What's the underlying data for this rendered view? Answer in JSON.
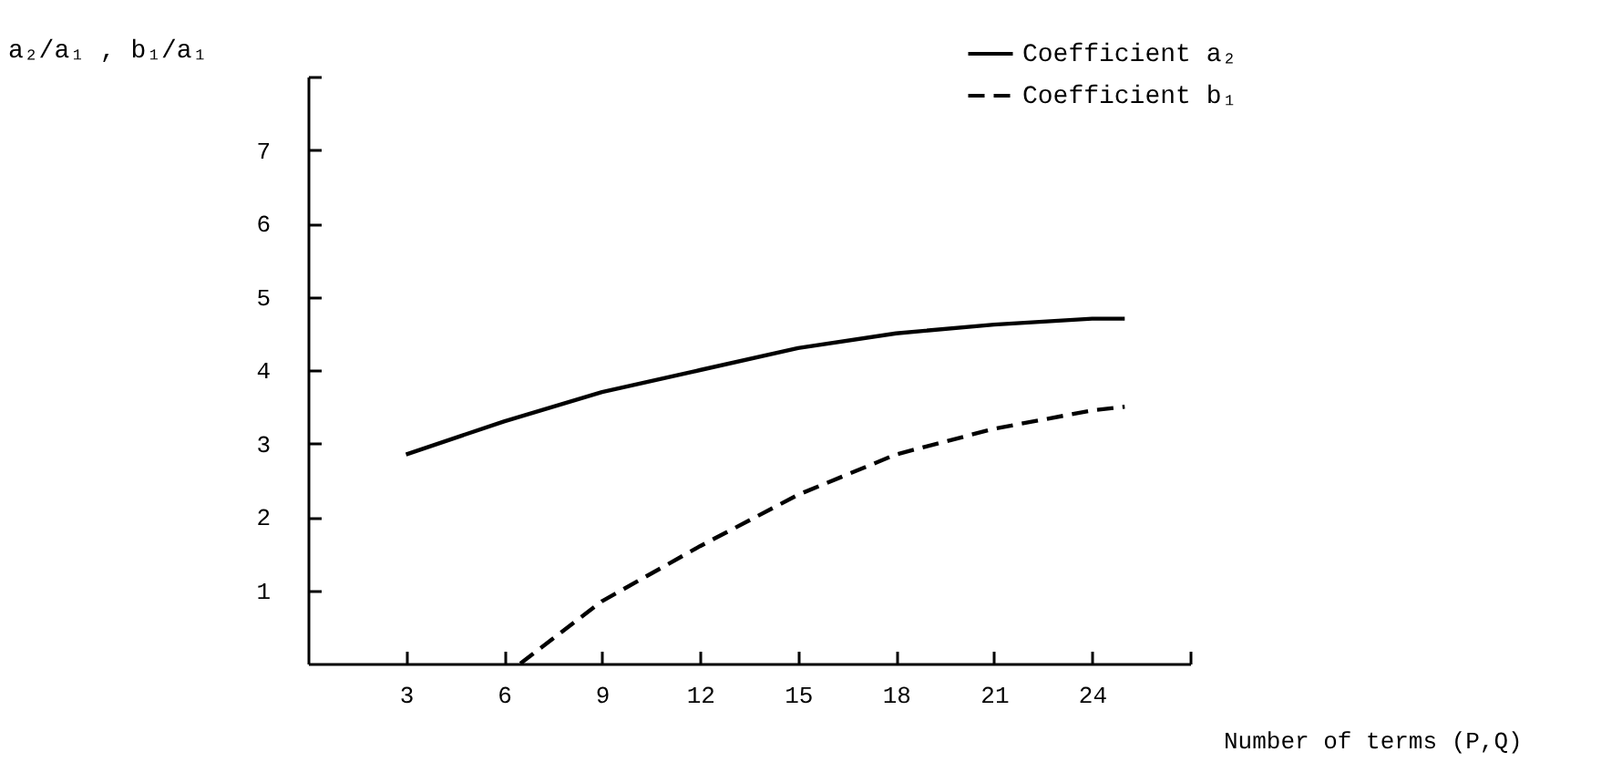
{
  "chart_data": {
    "type": "line",
    "xlabel": "Number of terms (P,Q)",
    "ylabel": "a₂/a₁ , b₁/a₁",
    "xlim": [
      0,
      27
    ],
    "xticks": [
      3,
      6,
      9,
      12,
      15,
      18,
      21,
      24,
      {
        "value": 27,
        "label": null
      }
    ],
    "ylim": [
      0,
      8
    ],
    "yticks": [
      1,
      2,
      3,
      4,
      5,
      6,
      7,
      {
        "value": 8,
        "label": null
      }
    ],
    "legend": "top right",
    "marker": "none",
    "series": [
      {
        "name": "Coefficient a₂",
        "color": "#000000",
        "line_style": "solid",
        "x": [
          3,
          6,
          9,
          12,
          15,
          18,
          21,
          24,
          25
        ],
        "values": [
          2.85,
          3.3,
          3.7,
          4.0,
          4.3,
          4.5,
          4.62,
          4.7,
          4.7
        ]
      },
      {
        "name": "Coefficient b₁",
        "color": "#000000",
        "line_style": "dashed",
        "x": [
          6.5,
          9,
          12,
          15,
          18,
          21,
          24,
          25
        ],
        "values": [
          0,
          0.85,
          1.6,
          2.3,
          2.85,
          3.2,
          3.45,
          3.5
        ]
      }
    ]
  }
}
